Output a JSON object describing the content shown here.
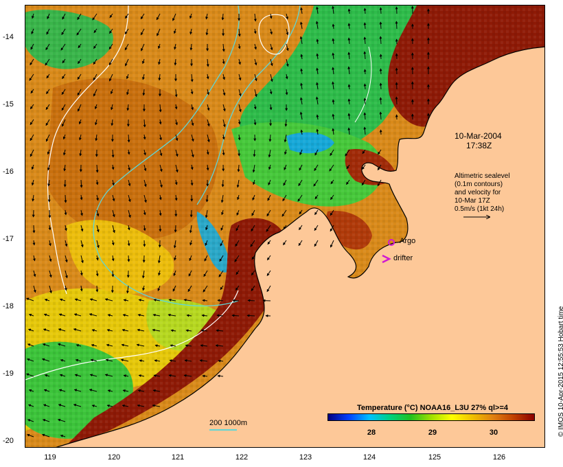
{
  "map": {
    "date": "10-Mar-2004",
    "time": "17:38Z",
    "altimetry_note": [
      "Altimetric sealevel",
      "(0.1m contours)",
      "and velocity for",
      "10-Mar 17Z",
      "0.5m/s (1kt 24h)"
    ],
    "argo_label": "Argo",
    "drifter_label": "drifter",
    "isobath_label": "200  1000m",
    "credit": "© IMOS 10-Apr-2015 12:55:53 Hobart time",
    "lat_ticks": [
      "-14",
      "-15",
      "-16",
      "-17",
      "-18",
      "-19",
      "-20"
    ],
    "lon_ticks": [
      "119",
      "120",
      "121",
      "122",
      "123",
      "124",
      "125",
      "126"
    ],
    "colors": {
      "land": "#fdc898",
      "argo": "#d11ad1",
      "drifter": "#d11ad1",
      "isobath": "#5fd6d6",
      "sealevel_contour": "#ffffff"
    }
  },
  "colorbar": {
    "title": "Temperature (°C) NOAA16_L3U 27% ql>=4",
    "tick_labels": [
      "28",
      "29",
      "30"
    ],
    "colors": [
      "#000080",
      "#0040ff",
      "#00c0ff",
      "#00d080",
      "#20c020",
      "#a0e000",
      "#ffff00",
      "#f0c000",
      "#e08010",
      "#c04000",
      "#8b0000"
    ]
  }
}
